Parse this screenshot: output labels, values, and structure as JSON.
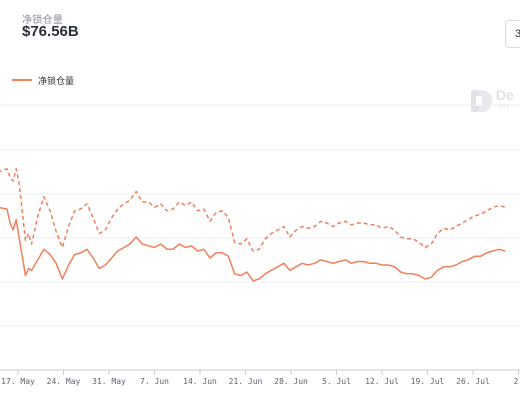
{
  "header": {
    "stat_label": "净锁仓量",
    "stat_value": "$76.56B",
    "range_button_label": "3"
  },
  "watermark": {
    "text": "De",
    "subtext": "Your"
  },
  "colors": {
    "line": "#f07f5c",
    "grid": "#e9ecef",
    "axis": "#c7ccd3",
    "watermark": "#dfe3e8"
  },
  "chart_data": {
    "type": "line",
    "title": "",
    "legend": {
      "entries": [
        "净锁仓量"
      ],
      "placement": "top-left"
    },
    "grid": true,
    "xlabel": "",
    "ylabel": "",
    "x_ticks": [
      "17. May",
      "24. May",
      "31. May",
      "7. Jun",
      "14. Jun",
      "21. Jun",
      "28. Jun",
      "5. Jul",
      "12. Jul",
      "19. Jul",
      "26. Jul",
      "2."
    ],
    "x": [
      -1.5,
      0,
      0.5,
      1,
      1.5,
      2,
      3,
      3.5,
      4,
      5,
      6,
      7,
      8,
      9,
      10,
      11,
      12,
      13,
      14,
      15,
      16,
      17,
      18,
      19,
      20,
      21,
      22,
      23,
      24,
      25,
      26,
      27,
      28,
      29,
      30,
      31,
      32,
      33,
      34,
      35,
      36,
      37,
      38,
      39,
      40,
      41,
      42,
      43,
      44,
      45,
      46,
      47,
      48,
      49,
      50,
      51,
      52,
      53,
      54,
      55,
      56,
      57,
      58,
      59,
      60,
      61,
      62,
      63,
      64,
      65,
      66,
      67,
      68,
      69,
      70,
      71,
      72,
      73,
      74,
      75,
      76,
      77,
      78,
      79,
      80,
      81
    ],
    "series": [
      {
        "name": "净锁仓量",
        "style": "dashed",
        "values": [
          113,
          115,
          110,
          108,
          115,
          106,
          74,
          78,
          72,
          88,
          99,
          91,
          79,
          70,
          82,
          91,
          92,
          95,
          87,
          78,
          80,
          87,
          92,
          95,
          97,
          102,
          96,
          96,
          93,
          95,
          91,
          92,
          96,
          94,
          96,
          91,
          92,
          85,
          90,
          91,
          87,
          73,
          72,
          75,
          68,
          69,
          75,
          78,
          80,
          82,
          76,
          80,
          82,
          81,
          82,
          85,
          84,
          82,
          84,
          85,
          83,
          84,
          84,
          83,
          83,
          81,
          82,
          80,
          76,
          75,
          75,
          73,
          70,
          72,
          78,
          81,
          80,
          82,
          84,
          86,
          88,
          89,
          91,
          93,
          94,
          93
        ]
      },
      {
        "name": "净锁仓量",
        "style": "solid",
        "values": [
          93,
          92,
          84,
          80,
          86,
          75,
          54,
          58,
          57,
          63,
          69,
          66,
          61,
          52,
          60,
          66,
          67,
          69,
          64,
          58,
          60,
          64,
          68,
          70,
          72,
          76,
          72,
          71,
          70,
          72,
          69,
          69,
          72,
          70,
          71,
          68,
          69,
          64,
          67,
          67,
          65,
          55,
          54,
          56,
          51,
          52,
          55,
          57,
          59,
          61,
          57,
          59,
          61,
          60,
          61,
          63,
          62,
          61,
          62,
          63,
          61,
          62,
          62,
          61,
          61,
          60,
          60,
          59,
          56,
          55,
          55,
          54,
          52,
          53,
          57,
          59,
          59,
          60,
          62,
          63,
          65,
          65,
          67,
          68,
          69,
          68
        ]
      }
    ]
  }
}
